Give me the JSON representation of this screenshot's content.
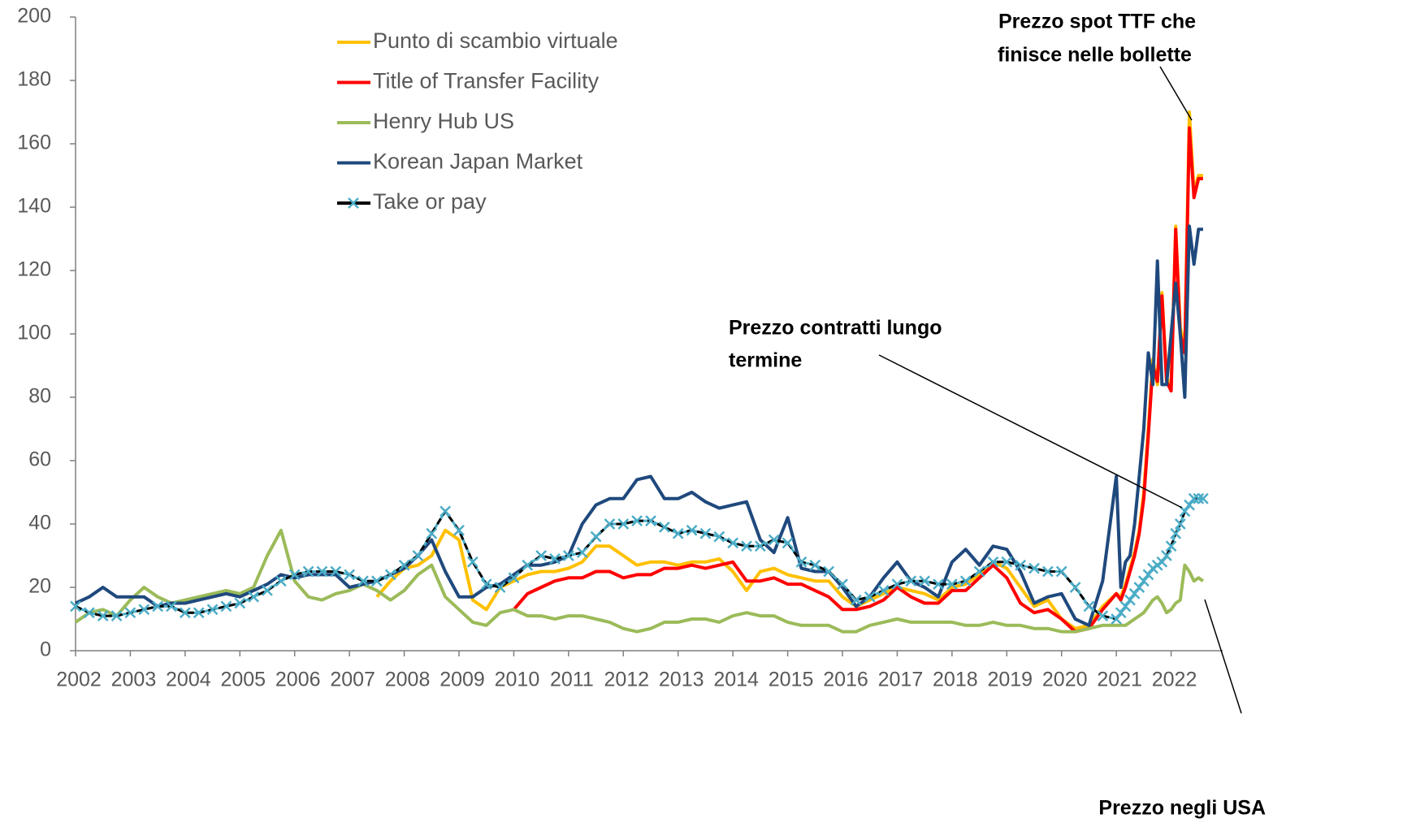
{
  "chart_data": {
    "type": "line",
    "x": [
      2002,
      2002.25,
      2002.5,
      2002.75,
      2003,
      2003.25,
      2003.5,
      2003.75,
      2004,
      2004.25,
      2004.5,
      2004.75,
      2005,
      2005.25,
      2005.5,
      2005.75,
      2006,
      2006.25,
      2006.5,
      2006.75,
      2007,
      2007.25,
      2007.5,
      2007.75,
      2008,
      2008.25,
      2008.5,
      2008.75,
      2009,
      2009.25,
      2009.5,
      2009.75,
      2010,
      2010.25,
      2010.5,
      2010.75,
      2011,
      2011.25,
      2011.5,
      2011.75,
      2012,
      2012.25,
      2012.5,
      2012.75,
      2013,
      2013.25,
      2013.5,
      2013.75,
      2014,
      2014.25,
      2014.5,
      2014.75,
      2015,
      2015.25,
      2015.5,
      2015.75,
      2016,
      2016.25,
      2016.5,
      2016.75,
      2017,
      2017.25,
      2017.5,
      2017.75,
      2018,
      2018.25,
      2018.5,
      2018.75,
      2019,
      2019.25,
      2019.5,
      2019.75,
      2020,
      2020.25,
      2020.5,
      2020.75,
      2021,
      2021.083,
      2021.167,
      2021.25,
      2021.333,
      2021.417,
      2021.5,
      2021.583,
      2021.667,
      2021.75,
      2021.833,
      2021.917,
      2022,
      2022.083,
      2022.167,
      2022.25,
      2022.333,
      2022.417,
      2022.5,
      2022.583
    ],
    "series": [
      {
        "name": "Punto di scambio virtuale",
        "color": "#ffc000",
        "values": [
          null,
          null,
          null,
          null,
          null,
          null,
          null,
          null,
          null,
          null,
          null,
          null,
          null,
          null,
          null,
          null,
          null,
          null,
          null,
          null,
          null,
          null,
          17,
          22,
          26,
          27,
          30,
          38,
          35,
          16,
          13,
          20,
          22,
          24,
          25,
          25,
          26,
          28,
          33,
          33,
          30,
          27,
          28,
          28,
          27,
          28,
          28,
          29,
          25,
          19,
          25,
          26,
          24,
          23,
          22,
          22,
          17,
          14,
          16,
          18,
          20,
          19,
          18,
          16,
          20,
          21,
          24,
          28,
          26,
          20,
          14,
          16,
          10,
          7,
          8,
          14,
          18,
          17,
          21,
          26,
          31,
          38,
          50,
          70,
          92,
          84,
          113,
          86,
          84,
          134,
          102,
          96,
          170,
          145,
          150,
          150
        ]
      },
      {
        "name": "Title of Transfer Facility",
        "color": "#ff0000",
        "values": [
          null,
          null,
          null,
          null,
          null,
          null,
          null,
          null,
          null,
          null,
          null,
          null,
          null,
          null,
          null,
          null,
          null,
          null,
          null,
          null,
          null,
          null,
          null,
          null,
          null,
          null,
          null,
          null,
          null,
          null,
          null,
          null,
          13,
          18,
          20,
          22,
          23,
          23,
          25,
          25,
          23,
          24,
          24,
          26,
          26,
          27,
          26,
          27,
          28,
          22,
          22,
          23,
          21,
          21,
          19,
          17,
          13,
          13,
          14,
          16,
          20,
          17,
          15,
          15,
          19,
          19,
          23,
          27,
          23,
          15,
          12,
          13,
          10,
          6,
          7,
          13,
          18,
          16,
          20,
          25,
          30,
          37,
          48,
          68,
          90,
          85,
          112,
          85,
          82,
          133,
          100,
          94,
          165,
          143,
          149,
          149
        ]
      },
      {
        "name": "Henry Hub US",
        "color": "#9bbb59",
        "values": [
          9,
          12,
          13,
          11,
          16,
          20,
          17,
          15,
          16,
          17,
          18,
          19,
          18,
          20,
          30,
          38,
          22,
          17,
          16,
          18,
          19,
          21,
          19,
          16,
          19,
          24,
          27,
          17,
          13,
          9,
          8,
          12,
          13,
          11,
          11,
          10,
          11,
          11,
          10,
          9,
          7,
          6,
          7,
          9,
          9,
          10,
          10,
          9,
          11,
          12,
          11,
          11,
          9,
          8,
          8,
          8,
          6,
          6,
          8,
          9,
          10,
          9,
          9,
          9,
          9,
          8,
          8,
          9,
          8,
          8,
          7,
          7,
          6,
          6,
          7,
          8,
          8,
          8,
          8,
          9,
          10,
          11,
          12,
          14,
          16,
          17,
          15,
          12,
          13,
          15,
          16,
          27,
          25,
          22,
          23,
          22
        ]
      },
      {
        "name": "Korean Japan Market",
        "color": "#1f497d",
        "values": [
          15,
          17,
          20,
          17,
          17,
          17,
          14,
          15,
          15,
          16,
          17,
          18,
          17,
          19,
          21,
          24,
          23,
          24,
          24,
          24,
          20,
          21,
          22,
          24,
          26,
          30,
          35,
          25,
          17,
          17,
          20,
          21,
          24,
          27,
          27,
          28,
          30,
          40,
          46,
          48,
          48,
          54,
          55,
          48,
          48,
          50,
          47,
          45,
          46,
          47,
          35,
          31,
          42,
          26,
          25,
          25,
          20,
          14,
          17,
          23,
          28,
          22,
          20,
          17,
          28,
          32,
          27,
          33,
          32,
          25,
          15,
          17,
          18,
          10,
          8,
          22,
          55,
          20,
          28,
          30,
          40,
          55,
          70,
          94,
          84,
          123,
          84,
          84,
          100,
          116,
          100,
          80,
          134,
          122,
          133,
          133
        ]
      },
      {
        "name": "Take or pay",
        "color": "#000000",
        "marker_color": "#4bacc6",
        "values": [
          14,
          12,
          11,
          11,
          12,
          13,
          14,
          14,
          12,
          12,
          13,
          14,
          15,
          17,
          19,
          22,
          24,
          25,
          25,
          25,
          24,
          22,
          22,
          24,
          27,
          30,
          37,
          44,
          38,
          28,
          21,
          20,
          23,
          27,
          30,
          29,
          30,
          31,
          36,
          40,
          40,
          41,
          41,
          39,
          37,
          38,
          37,
          36,
          34,
          33,
          33,
          35,
          34,
          28,
          27,
          25,
          21,
          16,
          17,
          19,
          21,
          22,
          22,
          21,
          21,
          22,
          25,
          28,
          28,
          27,
          26,
          25,
          25,
          20,
          14,
          11,
          10,
          12,
          14,
          16,
          18,
          20,
          22,
          24,
          26,
          27,
          28,
          30,
          33,
          37,
          40,
          44,
          46,
          48,
          48,
          48
        ]
      }
    ],
    "xlim": [
      2002,
      2023
    ],
    "xticks": [
      2002,
      2003,
      2004,
      2005,
      2006,
      2007,
      2008,
      2009,
      2010,
      2011,
      2012,
      2013,
      2014,
      2015,
      2016,
      2017,
      2018,
      2019,
      2020,
      2021,
      2022
    ],
    "ylim": [
      0,
      200
    ],
    "yticks": [
      0,
      20,
      40,
      60,
      80,
      100,
      120,
      140,
      160,
      180,
      200
    ],
    "annotations": [
      [
        "Prezzo spot TTF  che",
        "finisce nelle bollette"
      ],
      [
        "Prezzo contratti lungo",
        "termine"
      ],
      [
        "Prezzo negli USA"
      ]
    ]
  }
}
